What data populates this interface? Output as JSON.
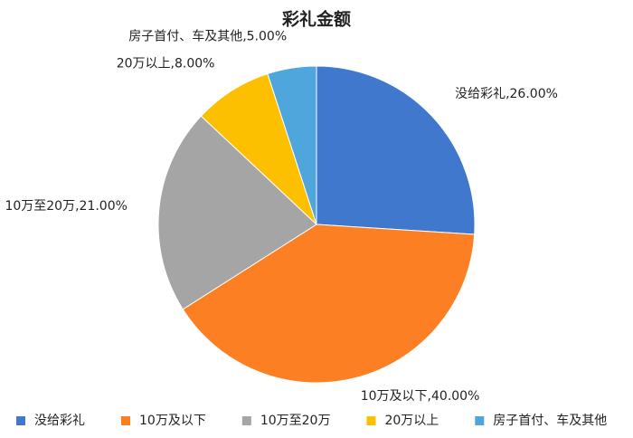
{
  "chart_data": {
    "type": "pie",
    "title": "彩礼金额",
    "categories": [
      "没给彩礼",
      "10万及以下",
      "10万至20万",
      "20万以上",
      "房子首付、车及其他"
    ],
    "values": [
      26,
      40,
      21,
      8,
      5
    ],
    "value_labels": [
      "没给彩礼,26.00%",
      "10万及以下,40.00%",
      "10万至20万,21.00%",
      "20万以上,8.00%",
      "房子首付、车及其他,5.00%"
    ],
    "colors": [
      "#3f78cd",
      "#fd7f23",
      "#a5a5a5",
      "#fdc000",
      "#4ea6dc"
    ],
    "legend": "bottom"
  }
}
